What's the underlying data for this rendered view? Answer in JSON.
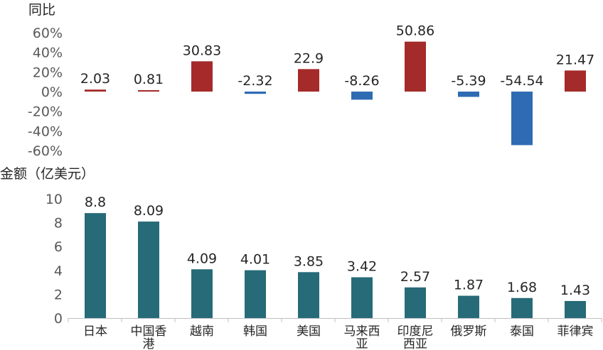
{
  "chart_data": [
    {
      "type": "bar",
      "ylabel": "同比",
      "categories": [
        "日本",
        "中国香港",
        "越南",
        "韩国",
        "美国",
        "马来西亚",
        "印度尼西亚",
        "俄罗斯",
        "泰国",
        "菲律宾"
      ],
      "values": [
        2.03,
        0.81,
        30.83,
        -2.32,
        22.9,
        -8.26,
        50.86,
        -5.39,
        -54.54,
        21.47
      ],
      "data_labels": [
        "2.03",
        "0.81",
        "30.83",
        "-2.32",
        "22.9",
        "-8.26",
        "50.86",
        "-5.39",
        "-54.54",
        "21.47"
      ],
      "yticks": [
        "60%",
        "40%",
        "20%",
        "0%",
        "-20%",
        "-40%",
        "-60%"
      ],
      "ytick_values": [
        60,
        40,
        20,
        0,
        -20,
        -40,
        -60
      ],
      "ylim": [
        -60,
        60
      ],
      "colors": {
        "positive": "#a52a2a",
        "negative": "#2e6bb3"
      }
    },
    {
      "type": "bar",
      "ylabel": "金额（亿美元）",
      "categories": [
        "日本",
        "中国香港",
        "越南",
        "韩国",
        "美国",
        "马来西亚",
        "印度尼西亚",
        "俄罗斯",
        "泰国",
        "菲律宾"
      ],
      "category_lines": [
        [
          "日本"
        ],
        [
          "中国香",
          "港"
        ],
        [
          "越南"
        ],
        [
          "韩国"
        ],
        [
          "美国"
        ],
        [
          "马来西",
          "亚"
        ],
        [
          "印度尼",
          "西亚"
        ],
        [
          "俄罗斯"
        ],
        [
          "泰国"
        ],
        [
          "菲律宾"
        ]
      ],
      "values": [
        8.8,
        8.09,
        4.09,
        4.01,
        3.85,
        3.42,
        2.57,
        1.87,
        1.68,
        1.43
      ],
      "data_labels": [
        "8.8",
        "8.09",
        "4.09",
        "4.01",
        "3.85",
        "3.42",
        "2.57",
        "1.87",
        "1.68",
        "1.43"
      ],
      "yticks": [
        "10",
        "8",
        "6",
        "4",
        "2",
        "0"
      ],
      "ytick_values": [
        10,
        8,
        6,
        4,
        2,
        0
      ],
      "ylim": [
        0,
        10
      ],
      "colors": {
        "bar": "#276a78"
      }
    }
  ]
}
